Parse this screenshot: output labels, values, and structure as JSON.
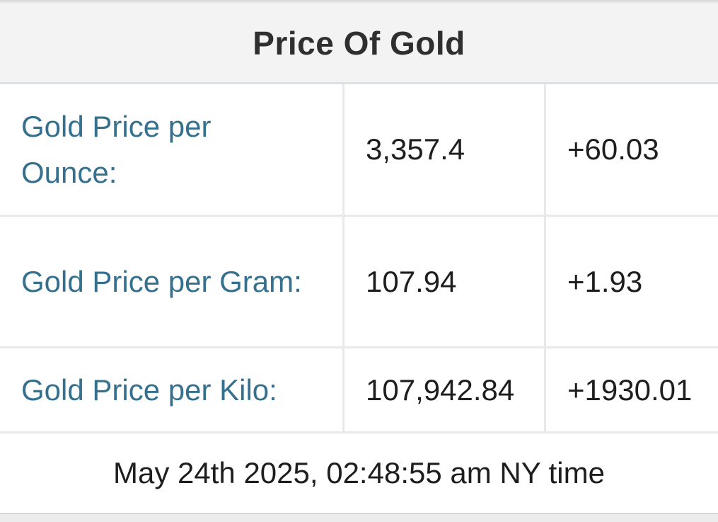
{
  "widget": {
    "title": "Price Of Gold",
    "rows": [
      {
        "label": "Gold Price per Ounce:",
        "price": "3,357.4",
        "change": "+60.03"
      },
      {
        "label": "Gold Price per Gram:",
        "price": "107.94",
        "change": "+1.93"
      },
      {
        "label": "Gold Price per Kilo:",
        "price": "107,942.84",
        "change": "+1930.01"
      }
    ],
    "timestamp": "May 24th 2025, 02:48:55 am NY time",
    "colors": {
      "label_blue": "#35708e",
      "value_text": "#1e1e1e",
      "header_bg": "#f3f3f4",
      "border": "#e7e9ea"
    }
  }
}
